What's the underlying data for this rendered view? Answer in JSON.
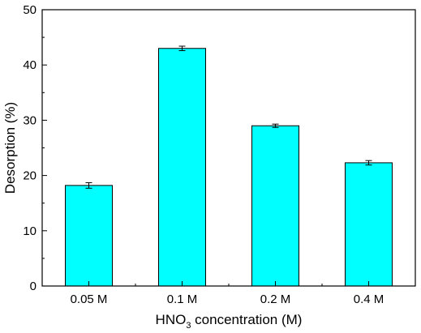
{
  "chart_data": {
    "type": "bar",
    "categories": [
      "0.05 M",
      "0.1 M",
      "0.2 M",
      "0.4 M"
    ],
    "values": [
      18.2,
      43.0,
      29.0,
      22.3
    ],
    "errors": [
      0.5,
      0.4,
      0.3,
      0.4
    ],
    "xlabel": {
      "prefix": "HNO",
      "subscript": "3",
      "suffix": " concentration (M)"
    },
    "ylabel": "Desorption (%)",
    "ylim": [
      0,
      50
    ],
    "yticks": [
      0,
      10,
      20,
      30,
      40,
      50
    ],
    "grid": false,
    "bar_color": "#00ffff",
    "edge_color": "#000000"
  }
}
